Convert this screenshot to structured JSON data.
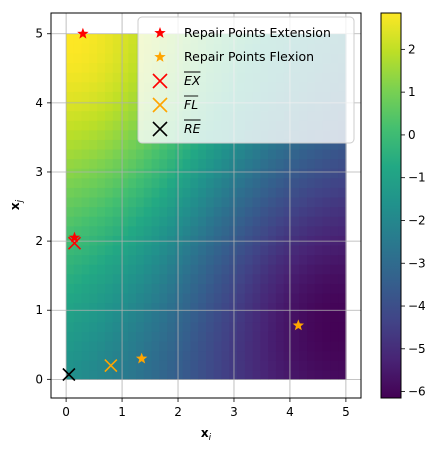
{
  "chart_data": {
    "type": "heatmap",
    "xlabel": "x",
    "xlabel_sub": "i",
    "ylabel": "x",
    "ylabel_sub": "j",
    "xlim": [
      -0.27,
      5.27
    ],
    "ylim": [
      -0.27,
      5.3
    ],
    "xticks": [
      0,
      1,
      2,
      3,
      4,
      5
    ],
    "yticks": [
      0,
      1,
      2,
      3,
      4,
      5
    ],
    "grid": true,
    "colormap": "viridis",
    "colorbar": {
      "min": -6.15,
      "max": 2.85,
      "ticks": [
        2,
        1,
        0,
        -1,
        -2,
        -3,
        -4,
        -5,
        -6
      ]
    },
    "field": {
      "domain_x": [
        0,
        5
      ],
      "domain_y": [
        0,
        5
      ],
      "max_value": 2.85,
      "max_at": [
        0.05,
        4.95
      ],
      "min_value": -6.1,
      "min_at": [
        4.85,
        0.75
      ]
    },
    "series": [
      {
        "name": "Repair Points Extension",
        "marker": "star",
        "color": "#ff0000",
        "points": [
          [
            0.3,
            5.0
          ],
          [
            0.15,
            2.05
          ]
        ]
      },
      {
        "name": "Repair Points Flexion",
        "marker": "star",
        "color": "#ffa500",
        "points": [
          [
            1.35,
            0.3
          ],
          [
            4.15,
            0.78
          ]
        ]
      },
      {
        "name": "EX",
        "marker": "x",
        "color": "#ff0000",
        "overline": true,
        "points": [
          [
            0.15,
            1.97
          ]
        ]
      },
      {
        "name": "FL",
        "marker": "x",
        "color": "#ffa500",
        "overline": true,
        "points": [
          [
            0.8,
            0.2
          ]
        ]
      },
      {
        "name": "RE",
        "marker": "x",
        "color": "#000000",
        "overline": true,
        "points": [
          [
            0.05,
            0.07
          ]
        ]
      }
    ],
    "legend": "top-right"
  }
}
